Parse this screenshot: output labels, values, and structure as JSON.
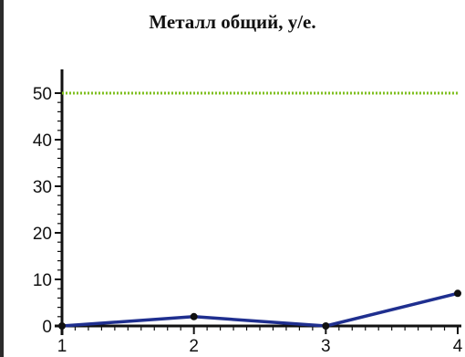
{
  "chart_data": {
    "type": "line",
    "title": "Металл общий, у/е.",
    "xlabel": "",
    "ylabel": "",
    "x": [
      1,
      2,
      3,
      4
    ],
    "series": [
      {
        "values": [
          0,
          2,
          0,
          7
        ],
        "color": "#1f2f8f",
        "marker": "circle"
      }
    ],
    "reference_line": {
      "y": 50,
      "color": "#7fbf1f",
      "style": "dotted"
    },
    "xlim": [
      1,
      4
    ],
    "ylim": [
      0,
      50
    ],
    "x_ticks": [
      "1",
      "2",
      "3",
      "4"
    ],
    "y_ticks": [
      "0",
      "10",
      "20",
      "30",
      "40",
      "50"
    ],
    "grid": false,
    "legend": "none"
  }
}
